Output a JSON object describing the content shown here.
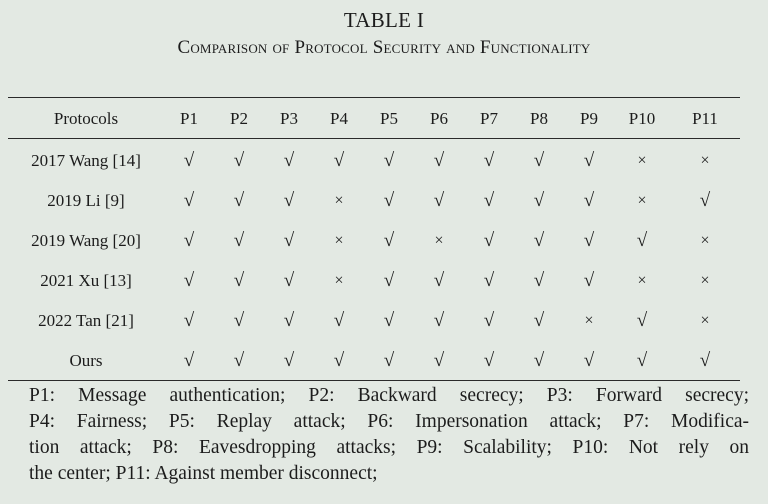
{
  "caption": {
    "title": "TABLE I",
    "subtitle": "Comparison of Protocol Security and Functionality"
  },
  "table": {
    "columns": [
      "Protocols",
      "P1",
      "P2",
      "P3",
      "P4",
      "P5",
      "P6",
      "P7",
      "P8",
      "P9",
      "P10",
      "P11"
    ],
    "rows": [
      {
        "name": "2017 Wang [14]",
        "marks": [
          "√",
          "√",
          "√",
          "√",
          "√",
          "√",
          "√",
          "√",
          "√",
          "×",
          "×"
        ]
      },
      {
        "name": "2019 Li [9]",
        "marks": [
          "√",
          "√",
          "√",
          "×",
          "√",
          "√",
          "√",
          "√",
          "√",
          "×",
          "√"
        ]
      },
      {
        "name": "2019 Wang [20]",
        "marks": [
          "√",
          "√",
          "√",
          "×",
          "√",
          "×",
          "√",
          "√",
          "√",
          "√",
          "×"
        ]
      },
      {
        "name": "2021 Xu [13]",
        "marks": [
          "√",
          "√",
          "√",
          "×",
          "√",
          "√",
          "√",
          "√",
          "√",
          "×",
          "×"
        ]
      },
      {
        "name": "2022 Tan [21]",
        "marks": [
          "√",
          "√",
          "√",
          "√",
          "√",
          "√",
          "√",
          "√",
          "×",
          "√",
          "×"
        ]
      },
      {
        "name": "Ours",
        "marks": [
          "√",
          "√",
          "√",
          "√",
          "√",
          "√",
          "√",
          "√",
          "√",
          "√",
          "√"
        ]
      }
    ]
  },
  "legend": {
    "lines": [
      "P1: Message authentication; P2: Backward secrecy; P3: Forward secrecy;",
      "P4: Fairness; P5: Replay attack; P6: Impersonation attack; P7: Modifica-",
      "tion attack; P8: Eavesdropping attacks; P9: Scalability; P10: Not rely on",
      "the center; P11: Against member disconnect;"
    ]
  }
}
